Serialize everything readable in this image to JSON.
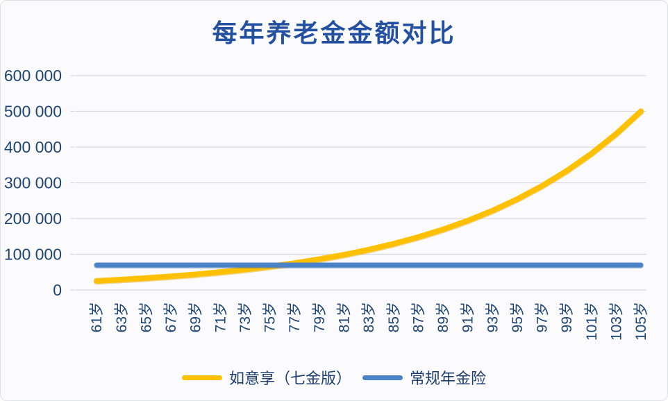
{
  "chart_data": {
    "type": "line",
    "title": "每年养老金金额对比",
    "xlabel": "",
    "ylabel": "",
    "categories": [
      "61岁",
      "63岁",
      "65岁",
      "67岁",
      "69岁",
      "71岁",
      "73岁",
      "75岁",
      "77岁",
      "79岁",
      "81岁",
      "83岁",
      "85岁",
      "87岁",
      "89岁",
      "91岁",
      "93岁",
      "95岁",
      "97岁",
      "99岁",
      "101岁",
      "103岁",
      "105岁"
    ],
    "series": [
      {
        "name": "如意享（七金版）",
        "color": "#FFC000",
        "shadow_color": "#E2A500",
        "values": [
          25500,
          29200,
          33400,
          38300,
          43800,
          50200,
          57400,
          65800,
          75300,
          86200,
          98700,
          113000,
          129300,
          148100,
          169500,
          194100,
          222200,
          254400,
          291300,
          333500,
          381800,
          437100,
          500400
        ]
      },
      {
        "name": "常规年金险",
        "color": "#4A82C8",
        "shadow_color": "#3A6BAE",
        "values": [
          70000,
          70000,
          70000,
          70000,
          70000,
          70000,
          70000,
          70000,
          70000,
          70000,
          70000,
          70000,
          70000,
          70000,
          70000,
          70000,
          70000,
          70000,
          70000,
          70000,
          70000,
          70000,
          70000
        ]
      }
    ],
    "ylim": [
      0,
      600000
    ],
    "y_ticks": [
      0,
      100000,
      200000,
      300000,
      400000,
      500000,
      600000
    ],
    "y_tick_labels": [
      "0",
      "100 000",
      "200 000",
      "300 000",
      "400 000",
      "500 000",
      "600 000"
    ],
    "grid": "horizontal",
    "legend_position": "bottom",
    "x_label_rotation": -90
  },
  "colors": {
    "title_text": "#2350A0",
    "axis_text": "#1D4373",
    "gridline": "#D8D8DE",
    "card_background": "#FBFBFD",
    "card_border": "#DFDFE6"
  }
}
